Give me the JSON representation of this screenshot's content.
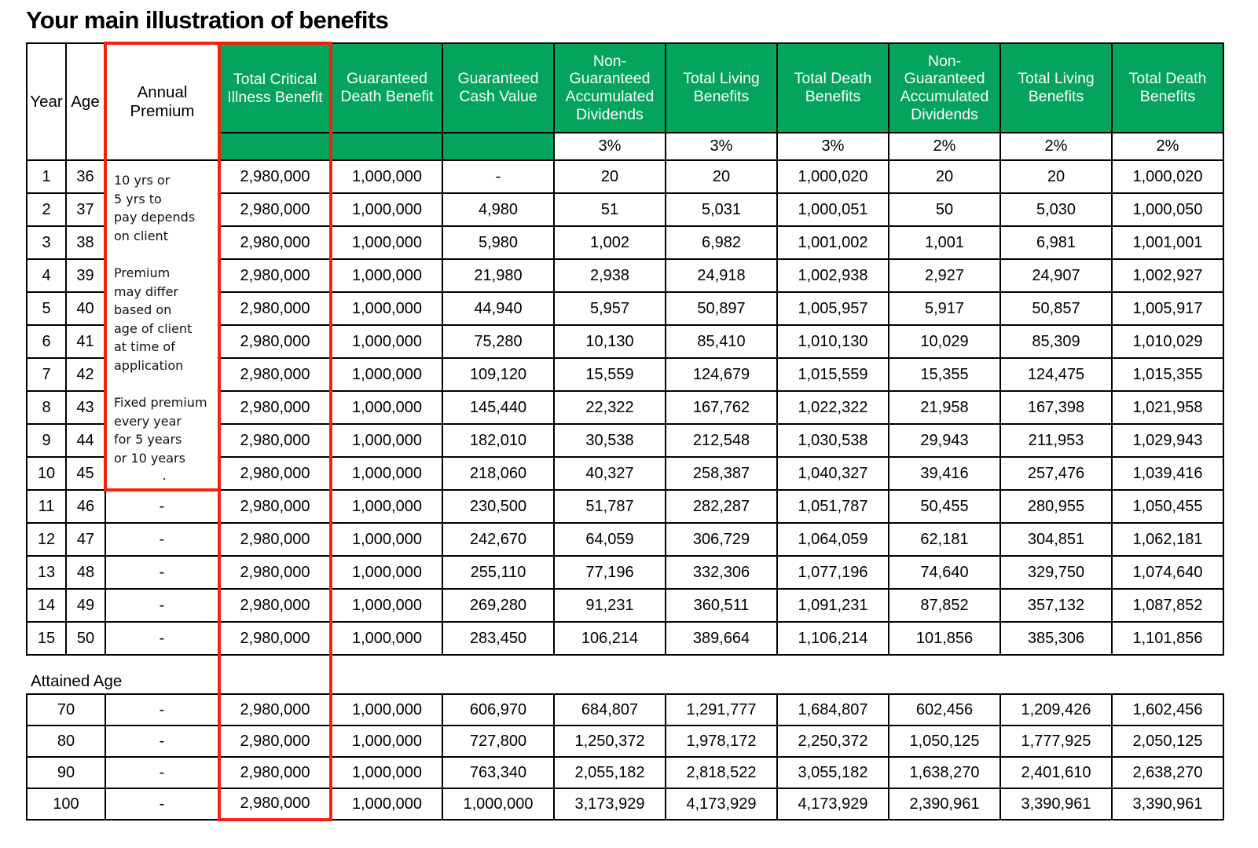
{
  "title": "Your main illustration of benefits",
  "colors": {
    "header_green": "#05A45C",
    "highlight_red": "#F3220D",
    "grid_black": "#000000",
    "header_text": "#ffffff"
  },
  "header": {
    "year": "Year",
    "age": "Age",
    "annual_premium": "Annual\nPremium",
    "benefit_columns": [
      {
        "label": "Total Critical\nIllness Benefit",
        "rate": "",
        "highlight": true
      },
      {
        "label": "Guaranteed\nDeath Benefit",
        "rate": ""
      },
      {
        "label": "Guaranteed\nCash Value",
        "rate": ""
      },
      {
        "label": "Non-\nGuaranteed\nAccumulated\nDividends",
        "rate": "3%"
      },
      {
        "label": "Total Living\nBenefits",
        "rate": "3%"
      },
      {
        "label": "Total Death\nBenefits",
        "rate": "3%"
      },
      {
        "label": "Non-\nGuaranteed\nAccumulated\nDividends",
        "rate": "2%"
      },
      {
        "label": "Total Living\nBenefits",
        "rate": "2%"
      },
      {
        "label": "Total Death\nBenefits",
        "rate": "2%"
      }
    ]
  },
  "premium_notes": "10 yrs or\n5 yrs to\npay depends\non client\n\nPremium\nmay differ\nbased on\nage of client\nat time of\napplication\n\nFixed premium\nevery year\nfor 5 years\nor 10 years",
  "premium_notes_footer": ".",
  "rows": [
    {
      "year": "1",
      "age": "36",
      "premium": null,
      "values": [
        "2,980,000",
        "1,000,000",
        "-",
        "20",
        "20",
        "1,000,020",
        "20",
        "20",
        "1,000,020"
      ]
    },
    {
      "year": "2",
      "age": "37",
      "premium": null,
      "values": [
        "2,980,000",
        "1,000,000",
        "4,980",
        "51",
        "5,031",
        "1,000,051",
        "50",
        "5,030",
        "1,000,050"
      ]
    },
    {
      "year": "3",
      "age": "38",
      "premium": null,
      "values": [
        "2,980,000",
        "1,000,000",
        "5,980",
        "1,002",
        "6,982",
        "1,001,002",
        "1,001",
        "6,981",
        "1,001,001"
      ]
    },
    {
      "year": "4",
      "age": "39",
      "premium": null,
      "values": [
        "2,980,000",
        "1,000,000",
        "21,980",
        "2,938",
        "24,918",
        "1,002,938",
        "2,927",
        "24,907",
        "1,002,927"
      ]
    },
    {
      "year": "5",
      "age": "40",
      "premium": null,
      "values": [
        "2,980,000",
        "1,000,000",
        "44,940",
        "5,957",
        "50,897",
        "1,005,957",
        "5,917",
        "50,857",
        "1,005,917"
      ]
    },
    {
      "year": "6",
      "age": "41",
      "premium": null,
      "values": [
        "2,980,000",
        "1,000,000",
        "75,280",
        "10,130",
        "85,410",
        "1,010,130",
        "10,029",
        "85,309",
        "1,010,029"
      ]
    },
    {
      "year": "7",
      "age": "42",
      "premium": null,
      "values": [
        "2,980,000",
        "1,000,000",
        "109,120",
        "15,559",
        "124,679",
        "1,015,559",
        "15,355",
        "124,475",
        "1,015,355"
      ]
    },
    {
      "year": "8",
      "age": "43",
      "premium": null,
      "values": [
        "2,980,000",
        "1,000,000",
        "145,440",
        "22,322",
        "167,762",
        "1,022,322",
        "21,958",
        "167,398",
        "1,021,958"
      ]
    },
    {
      "year": "9",
      "age": "44",
      "premium": null,
      "values": [
        "2,980,000",
        "1,000,000",
        "182,010",
        "30,538",
        "212,548",
        "1,030,538",
        "29,943",
        "211,953",
        "1,029,943"
      ]
    },
    {
      "year": "10",
      "age": "45",
      "premium": null,
      "values": [
        "2,980,000",
        "1,000,000",
        "218,060",
        "40,327",
        "258,387",
        "1,040,327",
        "39,416",
        "257,476",
        "1,039,416"
      ]
    },
    {
      "year": "11",
      "age": "46",
      "premium": "-",
      "values": [
        "2,980,000",
        "1,000,000",
        "230,500",
        "51,787",
        "282,287",
        "1,051,787",
        "50,455",
        "280,955",
        "1,050,455"
      ]
    },
    {
      "year": "12",
      "age": "47",
      "premium": "-",
      "values": [
        "2,980,000",
        "1,000,000",
        "242,670",
        "64,059",
        "306,729",
        "1,064,059",
        "62,181",
        "304,851",
        "1,062,181"
      ]
    },
    {
      "year": "13",
      "age": "48",
      "premium": "-",
      "values": [
        "2,980,000",
        "1,000,000",
        "255,110",
        "77,196",
        "332,306",
        "1,077,196",
        "74,640",
        "329,750",
        "1,074,640"
      ]
    },
    {
      "year": "14",
      "age": "49",
      "premium": "-",
      "values": [
        "2,980,000",
        "1,000,000",
        "269,280",
        "91,231",
        "360,511",
        "1,091,231",
        "87,852",
        "357,132",
        "1,087,852"
      ]
    },
    {
      "year": "15",
      "age": "50",
      "premium": "-",
      "values": [
        "2,980,000",
        "1,000,000",
        "283,450",
        "106,214",
        "389,664",
        "1,106,214",
        "101,856",
        "385,306",
        "1,101,856"
      ]
    }
  ],
  "attained_age_label": "Attained Age",
  "attained_rows": [
    {
      "age": "70",
      "premium": "-",
      "values": [
        "2,980,000",
        "1,000,000",
        "606,970",
        "684,807",
        "1,291,777",
        "1,684,807",
        "602,456",
        "1,209,426",
        "1,602,456"
      ]
    },
    {
      "age": "80",
      "premium": "-",
      "values": [
        "2,980,000",
        "1,000,000",
        "727,800",
        "1,250,372",
        "1,978,172",
        "2,250,372",
        "1,050,125",
        "1,777,925",
        "2,050,125"
      ]
    },
    {
      "age": "90",
      "premium": "-",
      "values": [
        "2,980,000",
        "1,000,000",
        "763,340",
        "2,055,182",
        "2,818,522",
        "3,055,182",
        "1,638,270",
        "2,401,610",
        "2,638,270"
      ]
    },
    {
      "age": "100",
      "premium": "-",
      "values": [
        "2,980,000",
        "1,000,000",
        "1,000,000",
        "3,173,929",
        "4,173,929",
        "4,173,929",
        "2,390,961",
        "3,390,961",
        "3,390,961"
      ]
    }
  ]
}
